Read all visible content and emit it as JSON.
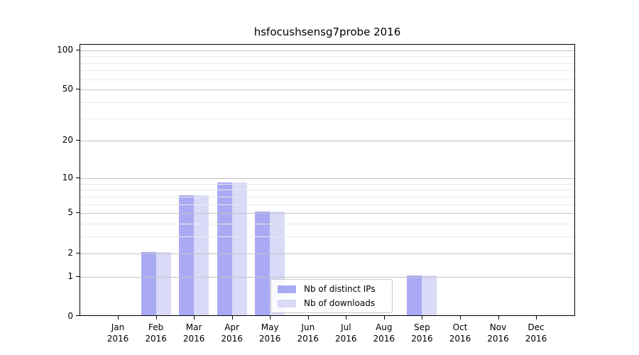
{
  "chart_data": {
    "type": "bar",
    "title": "hsfocushsensg7probe 2016",
    "categories": [
      "Jan",
      "Feb",
      "Mar",
      "Apr",
      "May",
      "Jun",
      "Jul",
      "Aug",
      "Sep",
      "Oct",
      "Nov",
      "Dec"
    ],
    "year": "2016",
    "series": [
      {
        "name": "Nb of distinct IPs",
        "color": "#a9aaf3",
        "values": [
          0,
          2,
          7,
          9,
          5,
          0,
          0,
          0,
          1,
          0,
          0,
          0
        ]
      },
      {
        "name": "Nb of downloads",
        "color": "#d9d9f8",
        "values": [
          0,
          2,
          7,
          9,
          5,
          0,
          0,
          0,
          1,
          0,
          0,
          0
        ]
      }
    ],
    "xlabel": "",
    "ylabel": "",
    "yscale": "log(1+v)",
    "ylim": [
      0,
      110
    ],
    "y_major_ticks": [
      0,
      1,
      2,
      5,
      10,
      20,
      50,
      100
    ],
    "y_minor_gridlines": [
      3,
      4,
      6,
      7,
      8,
      9,
      30,
      40,
      60,
      70,
      80,
      90
    ],
    "grid": "horizontal",
    "legend_position": "lower center"
  },
  "colors": {
    "axis": "#000000",
    "gridline_major": "#c4c4c4",
    "gridline_minor": "#eaeaea",
    "background": "#ffffff"
  }
}
